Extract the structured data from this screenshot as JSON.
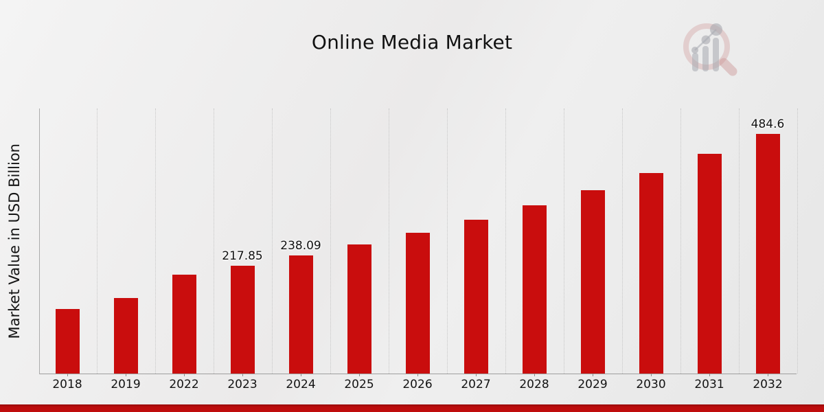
{
  "header": {
    "title": "Online Media Market"
  },
  "logo": {
    "name": "magnifier-bar-chart-watermark",
    "ring_color": "rgba(201,140,140,0.32)",
    "bars_color": "rgba(168,170,177,0.55)"
  },
  "chart_data": {
    "type": "bar",
    "title": "Online Media Market",
    "xlabel": "",
    "ylabel": "Market Value in USD Billion",
    "categories": [
      "2018",
      "2019",
      "2022",
      "2023",
      "2024",
      "2025",
      "2026",
      "2027",
      "2028",
      "2029",
      "2030",
      "2031",
      "2032"
    ],
    "values": [
      131.0,
      152.6,
      199.3,
      217.85,
      238.09,
      260.2,
      284.4,
      310.8,
      339.7,
      371.2,
      405.7,
      443.4,
      484.6
    ],
    "data_labels": [
      "",
      "",
      "",
      "217.85",
      "238.09",
      "",
      "",
      "",
      "",
      "",
      "",
      "",
      "484.6"
    ],
    "bar_color": "#c90d0d",
    "ylim": [
      0,
      537
    ],
    "grid": "vertical dotted lines at category boundaries",
    "legend": "none"
  },
  "footer": {
    "band_color": "#c00d0d"
  }
}
